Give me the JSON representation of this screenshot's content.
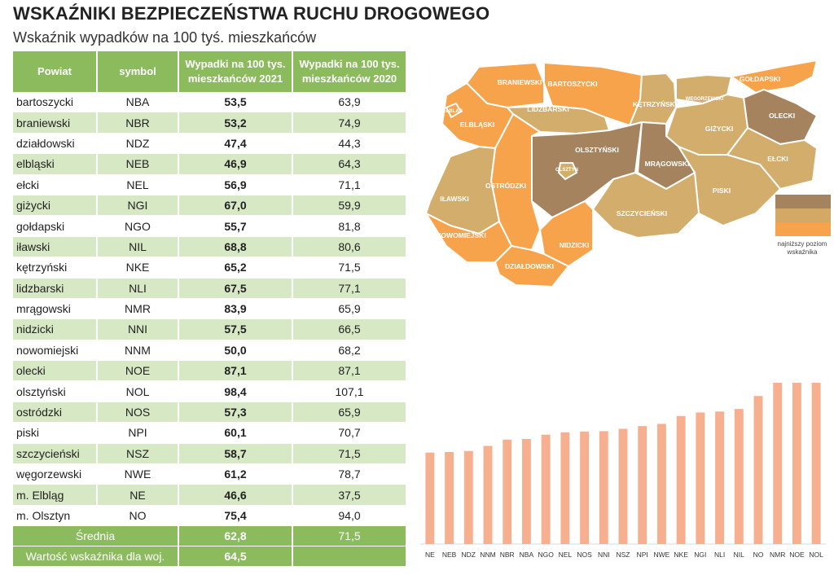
{
  "title": "WSKAŹNIKI BEZPIECZEŃSTWA RUCHU DROGOWEGO",
  "subtitle": "Wskaźnik wypadków na 100 tyś. mieszkańców",
  "table": {
    "headers": [
      "Powiat",
      "symbol",
      "Wypadki na 100 tys. mieszkańców 2021",
      "Wypadki na 100 tys. mieszkańców 2020"
    ],
    "rows": [
      [
        "bartoszycki",
        "NBA",
        "53,5",
        "63,9"
      ],
      [
        "braniewski",
        "NBR",
        "53,2",
        "74,9"
      ],
      [
        "działdowski",
        "NDZ",
        "47,4",
        "44,3"
      ],
      [
        "elbląski",
        "NEB",
        "46,9",
        "64,3"
      ],
      [
        "ełcki",
        "NEL",
        "56,9",
        "71,1"
      ],
      [
        "giżycki",
        "NGI",
        "67,0",
        "59,9"
      ],
      [
        "gołdapski",
        "NGO",
        "55,7",
        "81,8"
      ],
      [
        "iławski",
        "NIL",
        "68,8",
        "80,6"
      ],
      [
        "kętrzyński",
        "NKE",
        "65,2",
        "71,5"
      ],
      [
        "lidzbarski",
        "NLI",
        "67,5",
        "77,1"
      ],
      [
        "mrągowski",
        "NMR",
        "83,9",
        "65,9"
      ],
      [
        "nidzicki",
        "NNI",
        "57,5",
        "66,5"
      ],
      [
        "nowomiejski",
        "NNM",
        "50,0",
        "68,2"
      ],
      [
        "olecki",
        "NOE",
        "87,1",
        "87,1"
      ],
      [
        "olsztyński",
        "NOL",
        "98,4",
        "107,1"
      ],
      [
        "ostródzki",
        "NOS",
        "57,3",
        "65,9"
      ],
      [
        "piski",
        "NPI",
        "60,1",
        "70,7"
      ],
      [
        "szczycieński",
        "NSZ",
        "58,7",
        "71,5"
      ],
      [
        "węgorzewski",
        "NWE",
        "61,2",
        "78,7"
      ],
      [
        "m. Elbląg",
        "NE",
        "46,6",
        "37,5"
      ],
      [
        "m. Olsztyn",
        "NO",
        "75,4",
        "94,0"
      ]
    ],
    "summary": [
      {
        "label": "Średnia",
        "v2021": "62,8",
        "v2020": "71,5"
      },
      {
        "label": "Wartość wskaźnika dla woj.",
        "v2021": "64,5",
        "v2020": ""
      }
    ]
  },
  "map": {
    "regions": [
      {
        "label": "BRANIEWSKI",
        "tier": "low"
      },
      {
        "label": "BARTOSZYCKI",
        "tier": "low"
      },
      {
        "label": "GOŁDAPSKI",
        "tier": "low"
      },
      {
        "label": "ELBLĄSKI",
        "tier": "low"
      },
      {
        "label": "ELBLĄG",
        "tier": "low"
      },
      {
        "label": "LIDZBARSKI",
        "tier": "mid"
      },
      {
        "label": "KĘTRZYŃSKI",
        "tier": "mid"
      },
      {
        "label": "WĘGORZEWSKI",
        "tier": "mid"
      },
      {
        "label": "OLECKI",
        "tier": "high"
      },
      {
        "label": "GIŻYCKI",
        "tier": "mid"
      },
      {
        "label": "OLSZTYŃSKI",
        "tier": "high"
      },
      {
        "label": "OLSZTYN",
        "tier": "mid"
      },
      {
        "label": "MRĄGOWSKI",
        "tier": "high"
      },
      {
        "label": "EŁCKI",
        "tier": "mid"
      },
      {
        "label": "OSTRÓDZKI",
        "tier": "low"
      },
      {
        "label": "IŁAWSKI",
        "tier": "mid"
      },
      {
        "label": "PISKI",
        "tier": "mid"
      },
      {
        "label": "SZCZYCIEŃSKI",
        "tier": "mid"
      },
      {
        "label": "NOWOMIEJSKI",
        "tier": "low"
      },
      {
        "label": "NIDZICKI",
        "tier": "low"
      },
      {
        "label": "DZIAŁDOWSKI",
        "tier": "low"
      }
    ],
    "legend_colors": [
      "#a6835f",
      "#d3a965",
      "#f6a34c"
    ],
    "legend_note": "najniższy poziom wskaźnika"
  },
  "colors": {
    "low": "#f6a34c",
    "mid": "#d3ad6b",
    "high": "#a6835f",
    "bar": "#f7b08f",
    "header_green": "#8bbb5d",
    "row_green": "#d7e8c4"
  },
  "chart_data": {
    "type": "bar",
    "categories": [
      "NE",
      "NEB",
      "NDZ",
      "NNM",
      "NBR",
      "NBA",
      "NGO",
      "NEL",
      "NOS",
      "NNI",
      "NSZ",
      "NPI",
      "NWE",
      "NKE",
      "NGI",
      "NLI",
      "NIL",
      "NO",
      "NMR",
      "NOE",
      "NOL"
    ],
    "values": [
      46.6,
      46.9,
      47.4,
      50.0,
      53.2,
      53.5,
      55.7,
      56.9,
      57.3,
      57.5,
      58.7,
      60.1,
      61.2,
      65.2,
      67.0,
      67.5,
      68.8,
      75.4,
      83.9,
      87.1,
      98.4
    ],
    "ylim": [
      0,
      100
    ],
    "grid": false,
    "legend": "none"
  }
}
